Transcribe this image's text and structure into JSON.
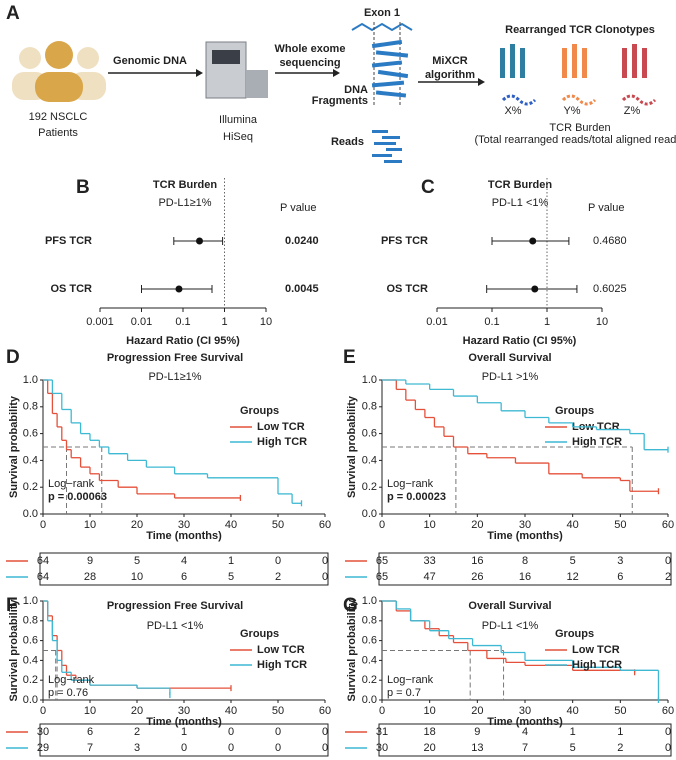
{
  "diagram": {
    "panel_label": "A",
    "patients": [
      "192 NSCLC",
      "Patients"
    ],
    "step1": "Genomic DNA",
    "machine": [
      "Illumina",
      "HiSeq"
    ],
    "step2": [
      "Whole exome",
      "sequencing"
    ],
    "exon": "Exon 1",
    "fragments": [
      "DNA",
      "Fragments"
    ],
    "reads": "Reads",
    "step3": [
      "MiXCR",
      "algorithm"
    ],
    "result_title": "Rearranged TCR Clonotypes",
    "clonotypes": [
      "X%",
      "Y%",
      "Z%"
    ],
    "burden": "TCR Burden",
    "burden_formula": "(Total rearranged reads/total aligned reads)"
  },
  "chart_data": [
    {
      "type": "forest",
      "panel_label": "B",
      "title": "TCR Burden",
      "subtitle": "PD-L1≥1%",
      "p_header": "P value",
      "p_bold": true,
      "categories": [
        "PFS TCR",
        "OS TCR"
      ],
      "values": [
        0.25,
        0.08
      ],
      "ci_low": [
        0.06,
        0.01
      ],
      "ci_high": [
        0.9,
        0.5
      ],
      "p_values": [
        "0.0240",
        "0.0045"
      ],
      "xlabel": "Hazard Ratio (CI 95%)",
      "xscale": "log",
      "xlim": [
        0.001,
        10
      ],
      "xticks": [
        0.001,
        0.01,
        0.1,
        1,
        10
      ],
      "reference": 1
    },
    {
      "type": "forest",
      "panel_label": "C",
      "title": "TCR Burden",
      "subtitle": "PD-L1 <1%",
      "p_header": "P value",
      "p_bold": false,
      "categories": [
        "PFS TCR",
        "OS TCR"
      ],
      "values": [
        0.55,
        0.6
      ],
      "ci_low": [
        0.1,
        0.08
      ],
      "ci_high": [
        2.5,
        3.5
      ],
      "p_values": [
        "0.4680",
        "0.6025"
      ],
      "xlabel": "Hazard Ratio (CI 95%)",
      "xscale": "log",
      "xlim": [
        0.01,
        10
      ],
      "xticks": [
        0.01,
        0.1,
        1,
        10
      ],
      "reference": 1
    },
    {
      "type": "km",
      "panel_label": "D",
      "title": "Progression Free Survival",
      "subtitle": "PD-L1≥1%",
      "ylabel": "Survival probability",
      "xlabel": "Time (months)",
      "legend_title": "Groups",
      "annotations": [
        "Log−rank",
        "p = 0.00063"
      ],
      "annotation_bold": true,
      "xlim": [
        0,
        60
      ],
      "xticks": [
        0,
        10,
        20,
        30,
        40,
        50,
        60
      ],
      "ylim": [
        0,
        1
      ],
      "yticks": [
        {
          "value": 0,
          "label": "0.0"
        },
        0.2,
        0.4,
        0.6,
        0.8,
        {
          "value": 1,
          "label": "1.0"
        }
      ],
      "medians": [
        5,
        12.5
      ],
      "series": [
        {
          "name": "Low TCR",
          "color": "#e4503a",
          "x": [
            0,
            1,
            2,
            3,
            4,
            5,
            6,
            8,
            10,
            12,
            16,
            20,
            28,
            42
          ],
          "values": [
            1,
            0.9,
            0.75,
            0.65,
            0.55,
            0.48,
            0.42,
            0.35,
            0.3,
            0.25,
            0.2,
            0.15,
            0.12,
            0.12
          ],
          "at_risk": [
            64,
            9,
            5,
            4,
            1,
            0,
            0
          ]
        },
        {
          "name": "High TCR",
          "color": "#3db9d3",
          "x": [
            0,
            2,
            4,
            6,
            8,
            10,
            12,
            14,
            18,
            22,
            28,
            35,
            50,
            53,
            55
          ],
          "values": [
            1,
            0.9,
            0.78,
            0.68,
            0.6,
            0.55,
            0.5,
            0.45,
            0.4,
            0.35,
            0.3,
            0.27,
            0.15,
            0.08,
            0.08
          ],
          "at_risk": [
            64,
            28,
            10,
            6,
            5,
            2,
            0
          ]
        }
      ]
    },
    {
      "type": "km",
      "panel_label": "E",
      "title": "Overall Survival",
      "subtitle": "PD-L1 >1%",
      "ylabel": "Survival probability",
      "xlabel": "Time (months)",
      "legend_title": "Groups",
      "annotations": [
        "Log−rank",
        "p = 0.00023"
      ],
      "annotation_bold": true,
      "xlim": [
        0,
        60
      ],
      "xticks": [
        0,
        10,
        20,
        30,
        40,
        50,
        60
      ],
      "ylim": [
        0,
        1
      ],
      "yticks": [
        {
          "value": 0,
          "label": "0.0"
        },
        0.2,
        0.4,
        0.6,
        0.8,
        {
          "value": 1,
          "label": "1.0"
        }
      ],
      "medians": [
        15.5,
        52.5
      ],
      "series": [
        {
          "name": "Low TCR",
          "color": "#e4503a",
          "x": [
            0,
            3,
            5,
            7,
            9,
            11,
            13,
            15,
            18,
            22,
            28,
            35,
            42,
            50,
            52,
            58
          ],
          "values": [
            1,
            0.93,
            0.85,
            0.78,
            0.72,
            0.65,
            0.58,
            0.5,
            0.45,
            0.42,
            0.38,
            0.3,
            0.27,
            0.25,
            0.17,
            0.17
          ],
          "at_risk": [
            65,
            33,
            16,
            8,
            5,
            3,
            0
          ]
        },
        {
          "name": "High TCR",
          "color": "#3db9d3",
          "x": [
            0,
            5,
            10,
            15,
            20,
            25,
            30,
            35,
            40,
            45,
            52,
            55,
            60
          ],
          "values": [
            1,
            0.97,
            0.93,
            0.88,
            0.83,
            0.77,
            0.72,
            0.68,
            0.65,
            0.63,
            0.6,
            0.48,
            0.48
          ],
          "at_risk": [
            65,
            47,
            26,
            16,
            12,
            6,
            2
          ]
        }
      ]
    },
    {
      "type": "km",
      "panel_label": "F",
      "title": "Progression Free Survival",
      "subtitle": "PD-L1 <1%",
      "ylabel": "Survival probability",
      "xlabel": "Time (months)",
      "legend_title": "Groups",
      "annotations": [
        "Log−rank",
        "p = 0.76"
      ],
      "annotation_bold": false,
      "xlim": [
        0,
        60
      ],
      "xticks": [
        0,
        10,
        20,
        30,
        40,
        50,
        60
      ],
      "ylim": [
        0,
        1
      ],
      "yticks": [
        {
          "value": 0,
          "label": "0.0"
        },
        0.2,
        0.4,
        0.6,
        0.8,
        {
          "value": 1,
          "label": "1.0"
        }
      ],
      "medians": [
        3,
        2.7
      ],
      "series": [
        {
          "name": "Low TCR",
          "color": "#e4503a",
          "x": [
            0,
            1,
            2,
            3,
            4,
            5,
            7,
            10,
            20,
            40
          ],
          "values": [
            1,
            0.85,
            0.65,
            0.5,
            0.35,
            0.25,
            0.2,
            0.15,
            0.12,
            0.12
          ],
          "at_risk": [
            30,
            6,
            2,
            1,
            0,
            0,
            0
          ]
        },
        {
          "name": "High TCR",
          "color": "#3db9d3",
          "x": [
            0,
            1,
            2,
            3,
            4,
            6,
            10,
            20,
            27
          ],
          "values": [
            1,
            0.8,
            0.6,
            0.4,
            0.28,
            0.2,
            0.15,
            0.12,
            0.05
          ],
          "at_risk": [
            29,
            7,
            3,
            0,
            0,
            0,
            0
          ]
        }
      ]
    },
    {
      "type": "km",
      "panel_label": "G",
      "title": "Overall Survival",
      "subtitle": "PD-L1 <1%",
      "ylabel": "Survival probability",
      "xlabel": "Time (months)",
      "legend_title": "Groups",
      "annotations": [
        "Log−rank",
        "p = 0.7"
      ],
      "annotation_bold": false,
      "xlim": [
        0,
        60
      ],
      "xticks": [
        0,
        10,
        20,
        30,
        40,
        50,
        60
      ],
      "ylim": [
        0,
        1
      ],
      "yticks": [
        {
          "value": 0,
          "label": "0.0"
        },
        0.2,
        0.4,
        0.6,
        0.8,
        {
          "value": 1,
          "label": "1.0"
        }
      ],
      "medians": [
        18.5,
        25.5
      ],
      "series": [
        {
          "name": "Low TCR",
          "color": "#e4503a",
          "x": [
            0,
            3,
            6,
            9,
            12,
            15,
            18,
            22,
            26,
            30,
            40,
            53
          ],
          "values": [
            1,
            0.9,
            0.8,
            0.72,
            0.65,
            0.58,
            0.5,
            0.42,
            0.38,
            0.35,
            0.3,
            0.28
          ],
          "at_risk": [
            31,
            18,
            9,
            4,
            1,
            1,
            0
          ]
        },
        {
          "name": "High TCR",
          "color": "#3db9d3",
          "x": [
            0,
            3,
            6,
            10,
            14,
            19,
            25,
            30,
            40,
            50,
            58
          ],
          "values": [
            1,
            0.92,
            0.8,
            0.7,
            0.62,
            0.55,
            0.48,
            0.4,
            0.33,
            0.3,
            0
          ],
          "at_risk": [
            30,
            20,
            13,
            7,
            5,
            2,
            0
          ]
        }
      ]
    }
  ]
}
